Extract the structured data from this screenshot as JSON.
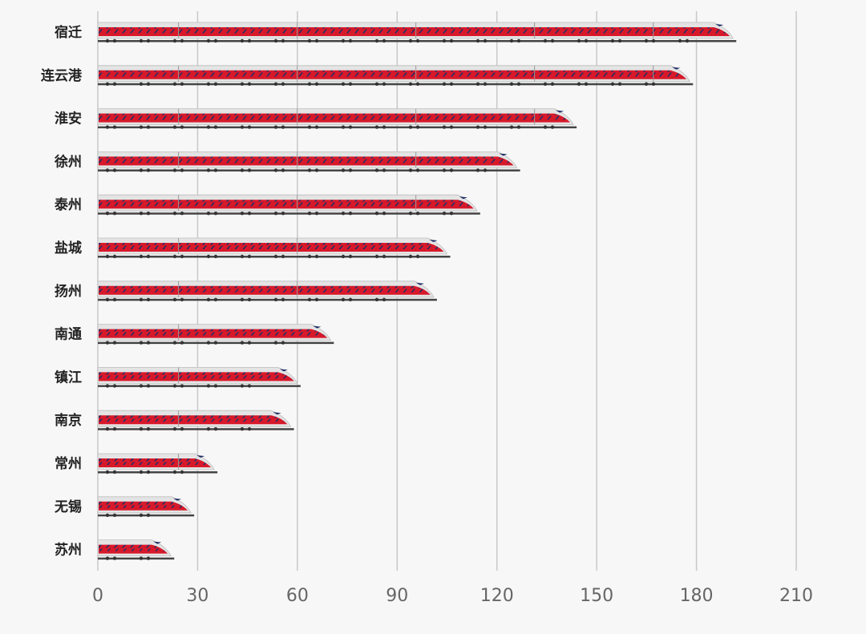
{
  "chart_data": {
    "type": "bar",
    "orientation": "horizontal",
    "title": "",
    "xlabel": "",
    "ylabel": "",
    "categories": [
      "宿迁",
      "连云港",
      "淮安",
      "徐州",
      "泰州",
      "盐城",
      "扬州",
      "南通",
      "镇江",
      "南京",
      "常州",
      "无锡",
      "苏州"
    ],
    "values": [
      191,
      178,
      143,
      126,
      114,
      105,
      101,
      70,
      60,
      58,
      35,
      28,
      22
    ],
    "xlim": [
      0,
      210
    ],
    "xticks": [
      "0",
      "30",
      "60",
      "90",
      "120",
      "150",
      "180",
      "210"
    ],
    "grid": "vertical",
    "legend": "none",
    "colors": {
      "train_body": "#d7192a",
      "train_shell": "#e4e4e4",
      "train_window": "#1f2f66",
      "train_base": "#444444",
      "gridline": "#c8c8c8",
      "background": "#f7f7f7"
    }
  }
}
